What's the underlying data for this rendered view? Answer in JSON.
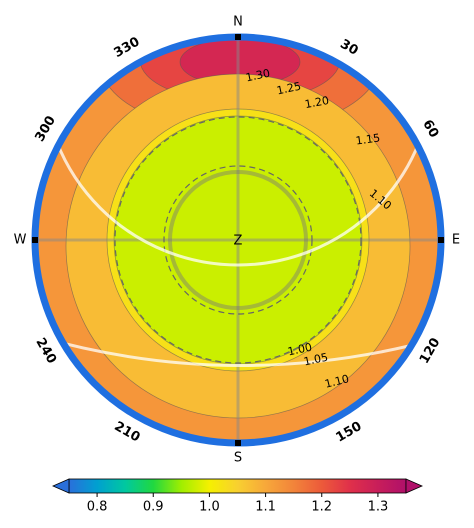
{
  "chart_data": {
    "type": "polar-contour",
    "cardinals": [
      "N",
      "E",
      "S",
      "W"
    ],
    "zenith_label": "Z",
    "azimuth_ticks": [
      30,
      60,
      120,
      150,
      210,
      240,
      300,
      330
    ],
    "contour_labels": [
      {
        "value": 1.3,
        "label": "1.30"
      },
      {
        "value": 1.25,
        "label": "1.25"
      },
      {
        "value": 1.2,
        "label": "1.20"
      },
      {
        "value": 1.15,
        "label": "1.15"
      },
      {
        "value": 1.1,
        "label": "1.10"
      },
      {
        "value": 1,
        "label": "1.00"
      },
      {
        "value": 1.05,
        "label": "1.05"
      },
      {
        "value": 1.1,
        "label": "1.10"
      }
    ],
    "colormap": [
      "#2a6fdb",
      "#00a0d0",
      "#00c8a0",
      "#20d840",
      "#a0ee00",
      "#f5f000",
      "#f8d030",
      "#f7a83a",
      "#f2843a",
      "#ec5a3a",
      "#e0304a",
      "#c81e5a",
      "#b0106a"
    ],
    "colorbar": {
      "lim": [
        0.75,
        1.35
      ],
      "ticks": [
        0.8,
        0.9,
        {
          "value": 1,
          "label": "1.0"
        },
        1.1,
        1.2,
        1.3
      ]
    }
  }
}
